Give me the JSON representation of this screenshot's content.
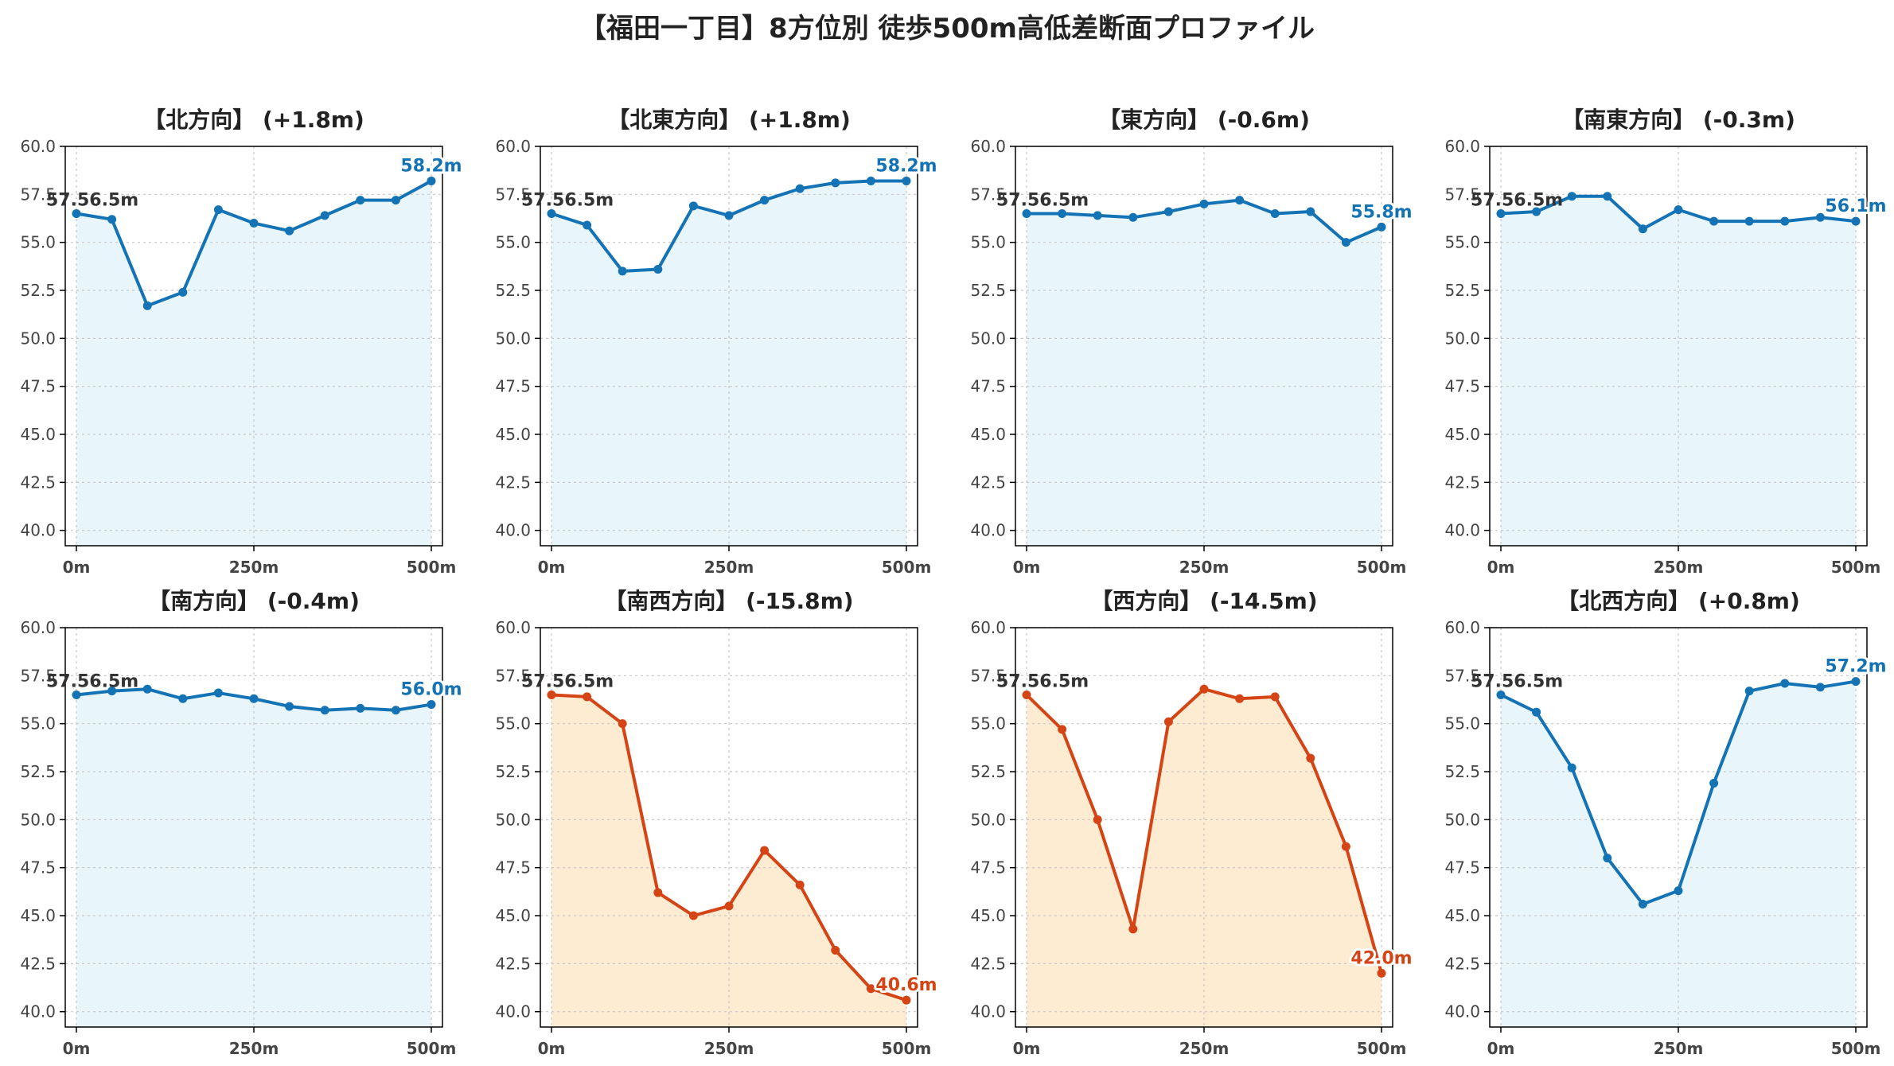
{
  "title": "【福田一丁目】8方位別 徒歩500m高低差断面プロファイル",
  "colors": {
    "up_line": "#1473b5",
    "up_fill": "#e8f6fc",
    "down_line": "#d54415",
    "down_fill": "#fdebd2",
    "start_label": "#333333",
    "grid": "#c8c8c8",
    "axis": "#000000",
    "tick_text": "#444444"
  },
  "chart_data": [
    {
      "type": "area",
      "title": "【北方向】 (+1.8m)",
      "trend": "up",
      "x": [
        0,
        50,
        100,
        150,
        200,
        250,
        300,
        350,
        400,
        450,
        500
      ],
      "values": [
        56.5,
        56.2,
        51.7,
        52.4,
        56.7,
        56.0,
        55.6,
        56.4,
        57.2,
        57.2,
        58.2
      ],
      "start_label": "57.56.5m",
      "end_label": "58.2m",
      "ylim": [
        39.2,
        60.0
      ],
      "yticks": [
        "60.0",
        "57.5",
        "55.0",
        "52.5",
        "50.0",
        "47.5",
        "45.0",
        "42.5",
        "40.0"
      ],
      "xticks": [
        "0m",
        "250m",
        "500m"
      ],
      "grid": true
    },
    {
      "type": "area",
      "title": "【北東方向】 (+1.8m)",
      "trend": "up",
      "x": [
        0,
        50,
        100,
        150,
        200,
        250,
        300,
        350,
        400,
        450,
        500
      ],
      "values": [
        56.5,
        55.9,
        53.5,
        53.6,
        56.9,
        56.4,
        57.2,
        57.8,
        58.1,
        58.2,
        58.2
      ],
      "start_label": "57.56.5m",
      "end_label": "58.2m",
      "ylim": [
        39.2,
        60.0
      ],
      "yticks": [
        "60.0",
        "57.5",
        "55.0",
        "52.5",
        "50.0",
        "47.5",
        "45.0",
        "42.5",
        "40.0"
      ],
      "xticks": [
        "0m",
        "250m",
        "500m"
      ],
      "grid": true
    },
    {
      "type": "area",
      "title": "【東方向】 (-0.6m)",
      "trend": "up",
      "x": [
        0,
        50,
        100,
        150,
        200,
        250,
        300,
        350,
        400,
        450,
        500
      ],
      "values": [
        56.5,
        56.5,
        56.4,
        56.3,
        56.6,
        57.0,
        57.2,
        56.5,
        56.6,
        55.0,
        55.8
      ],
      "start_label": "57.56.5m",
      "end_label": "55.8m",
      "ylim": [
        39.2,
        60.0
      ],
      "yticks": [
        "60.0",
        "57.5",
        "55.0",
        "52.5",
        "50.0",
        "47.5",
        "45.0",
        "42.5",
        "40.0"
      ],
      "xticks": [
        "0m",
        "250m",
        "500m"
      ],
      "grid": true
    },
    {
      "type": "area",
      "title": "【南東方向】 (-0.3m)",
      "trend": "up",
      "x": [
        0,
        50,
        100,
        150,
        200,
        250,
        300,
        350,
        400,
        450,
        500
      ],
      "values": [
        56.5,
        56.6,
        57.4,
        57.4,
        55.7,
        56.7,
        56.1,
        56.1,
        56.1,
        56.3,
        56.1
      ],
      "start_label": "57.56.5m",
      "end_label": "56.1m",
      "ylim": [
        39.2,
        60.0
      ],
      "yticks": [
        "60.0",
        "57.5",
        "55.0",
        "52.5",
        "50.0",
        "47.5",
        "45.0",
        "42.5",
        "40.0"
      ],
      "xticks": [
        "0m",
        "250m",
        "500m"
      ],
      "grid": true
    },
    {
      "type": "area",
      "title": "【南方向】 (-0.4m)",
      "trend": "up",
      "x": [
        0,
        50,
        100,
        150,
        200,
        250,
        300,
        350,
        400,
        450,
        500
      ],
      "values": [
        56.5,
        56.7,
        56.8,
        56.3,
        56.6,
        56.3,
        55.9,
        55.7,
        55.8,
        55.7,
        56.0
      ],
      "start_label": "57.56.5m",
      "end_label": "56.0m",
      "ylim": [
        39.2,
        60.0
      ],
      "yticks": [
        "60.0",
        "57.5",
        "55.0",
        "52.5",
        "50.0",
        "47.5",
        "45.0",
        "42.5",
        "40.0"
      ],
      "xticks": [
        "0m",
        "250m",
        "500m"
      ],
      "grid": true
    },
    {
      "type": "area",
      "title": "【南西方向】 (-15.8m)",
      "trend": "down",
      "x": [
        0,
        50,
        100,
        150,
        200,
        250,
        300,
        350,
        400,
        450,
        500
      ],
      "values": [
        56.5,
        56.4,
        55.0,
        46.2,
        45.0,
        45.5,
        48.4,
        46.6,
        43.2,
        41.2,
        40.6
      ],
      "start_label": "57.56.5m",
      "end_label": "40.6m",
      "ylim": [
        39.2,
        60.0
      ],
      "yticks": [
        "60.0",
        "57.5",
        "55.0",
        "52.5",
        "50.0",
        "47.5",
        "45.0",
        "42.5",
        "40.0"
      ],
      "xticks": [
        "0m",
        "250m",
        "500m"
      ],
      "grid": true
    },
    {
      "type": "area",
      "title": "【西方向】 (-14.5m)",
      "trend": "down",
      "x": [
        0,
        50,
        100,
        150,
        200,
        250,
        300,
        350,
        400,
        450,
        500
      ],
      "values": [
        56.5,
        54.7,
        50.0,
        44.3,
        55.1,
        56.8,
        56.3,
        56.4,
        53.2,
        48.6,
        42.0
      ],
      "start_label": "57.56.5m",
      "end_label": "42.0m",
      "ylim": [
        39.2,
        60.0
      ],
      "yticks": [
        "60.0",
        "57.5",
        "55.0",
        "52.5",
        "50.0",
        "47.5",
        "45.0",
        "42.5",
        "40.0"
      ],
      "xticks": [
        "0m",
        "250m",
        "500m"
      ],
      "grid": true
    },
    {
      "type": "area",
      "title": "【北西方向】 (+0.8m)",
      "trend": "up",
      "x": [
        0,
        50,
        100,
        150,
        200,
        250,
        300,
        350,
        400,
        450,
        500
      ],
      "values": [
        56.5,
        55.6,
        52.7,
        48.0,
        45.6,
        46.3,
        51.9,
        56.7,
        57.1,
        56.9,
        57.2
      ],
      "start_label": "57.56.5m",
      "end_label": "57.2m",
      "ylim": [
        39.2,
        60.0
      ],
      "yticks": [
        "60.0",
        "57.5",
        "55.0",
        "52.5",
        "50.0",
        "47.5",
        "45.0",
        "42.5",
        "40.0"
      ],
      "xticks": [
        "0m",
        "250m",
        "500m"
      ],
      "grid": true
    }
  ]
}
